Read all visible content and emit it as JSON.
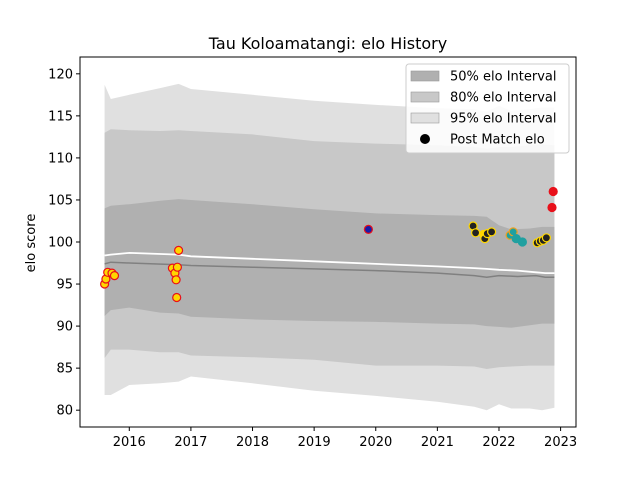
{
  "chart_data": {
    "type": "scatter",
    "title": "Tau Koloamatangi: elo History",
    "xlabel": "",
    "ylabel": "elo score",
    "xlim": [
      2015.2,
      2023.25
    ],
    "ylim": [
      78,
      122
    ],
    "x_ticks": [
      2016,
      2017,
      2018,
      2019,
      2020,
      2021,
      2022,
      2023
    ],
    "y_ticks": [
      80,
      85,
      90,
      95,
      100,
      105,
      110,
      115,
      120
    ],
    "grid": false,
    "legend_position": "top-right",
    "legend": [
      {
        "label": "50% elo Interval",
        "kind": "band",
        "color": "#b0b0b0"
      },
      {
        "label": "80% elo Interval",
        "kind": "band",
        "color": "#c8c8c8"
      },
      {
        "label": "95% elo Interval",
        "kind": "band",
        "color": "#e0e0e0"
      },
      {
        "label": "Post Match elo",
        "kind": "marker",
        "color": "#000000"
      }
    ],
    "bands": {
      "x": [
        2015.6,
        2015.7,
        2016.0,
        2016.5,
        2016.8,
        2017.0,
        2018.0,
        2019.0,
        2020.0,
        2021.0,
        2021.6,
        2021.8,
        2022.0,
        2022.2,
        2022.5,
        2022.7,
        2022.9
      ],
      "p95_upper": [
        118.7,
        117.0,
        117.5,
        118.3,
        118.8,
        118.2,
        117.5,
        116.8,
        116.3,
        115.9,
        115.8,
        115.5,
        116.2,
        115.6,
        115.8,
        116.0,
        116.0
      ],
      "p95_lower": [
        81.8,
        81.8,
        83.0,
        83.2,
        83.4,
        84.0,
        83.2,
        82.3,
        81.7,
        81.0,
        80.4,
        80.0,
        80.7,
        80.2,
        80.2,
        80.0,
        80.3
      ],
      "p80_upper": [
        113.0,
        113.4,
        113.3,
        113.2,
        113.3,
        113.2,
        112.8,
        112.0,
        111.7,
        111.5,
        111.3,
        111.1,
        111.3,
        111.3,
        111.5,
        111.6,
        111.5
      ],
      "p80_lower": [
        86.2,
        87.2,
        87.2,
        86.9,
        86.9,
        86.5,
        86.3,
        86.0,
        85.3,
        85.3,
        85.2,
        84.9,
        85.1,
        85.2,
        85.3,
        85.3,
        85.3
      ],
      "p50_upper": [
        104.0,
        104.3,
        104.5,
        104.9,
        105.1,
        105.0,
        104.5,
        103.9,
        103.4,
        103.2,
        103.1,
        103.0,
        102.0,
        101.5,
        101.6,
        101.8,
        101.8
      ],
      "p50_lower": [
        91.2,
        91.9,
        92.2,
        91.6,
        91.5,
        91.1,
        90.8,
        90.6,
        90.5,
        90.3,
        90.2,
        90.0,
        89.9,
        89.8,
        90.1,
        90.3,
        90.3
      ]
    },
    "mean_line": {
      "x": [
        2015.6,
        2015.7,
        2016.0,
        2016.8,
        2017.0,
        2018.0,
        2019.0,
        2020.0,
        2021.0,
        2021.6,
        2021.8,
        2022.0,
        2022.3,
        2022.6,
        2022.75,
        2022.9
      ],
      "y": [
        97.4,
        97.6,
        97.5,
        97.3,
        97.2,
        97.0,
        96.8,
        96.6,
        96.3,
        96.0,
        95.8,
        96.0,
        95.9,
        96.0,
        95.8,
        95.8
      ],
      "color": "#808080"
    },
    "upper_line": {
      "x": [
        2015.6,
        2015.7,
        2016.0,
        2016.8,
        2017.0,
        2018.0,
        2019.0,
        2020.0,
        2021.0,
        2021.6,
        2021.8,
        2022.0,
        2022.3,
        2022.6,
        2022.75,
        2022.9
      ],
      "y": [
        98.4,
        98.5,
        98.7,
        98.5,
        98.3,
        98.0,
        97.7,
        97.4,
        97.1,
        96.9,
        96.8,
        96.7,
        96.6,
        96.4,
        96.3,
        96.3
      ],
      "color": "#ffffff"
    },
    "points": [
      {
        "x": 2015.6,
        "y": 95.0,
        "fill": "#ffd700",
        "edge": "#e8101a"
      },
      {
        "x": 2015.62,
        "y": 95.6,
        "fill": "#ffd700",
        "edge": "#e8101a"
      },
      {
        "x": 2015.65,
        "y": 96.4,
        "fill": "#ffd700",
        "edge": "#e8101a"
      },
      {
        "x": 2015.72,
        "y": 96.3,
        "fill": "#ffd700",
        "edge": "#e8101a"
      },
      {
        "x": 2015.76,
        "y": 96.0,
        "fill": "#ffd700",
        "edge": "#e8101a"
      },
      {
        "x": 2016.7,
        "y": 96.9,
        "fill": "#ffd700",
        "edge": "#e8101a"
      },
      {
        "x": 2016.74,
        "y": 96.3,
        "fill": "#ffd700",
        "edge": "#e8101a"
      },
      {
        "x": 2016.76,
        "y": 95.5,
        "fill": "#ffd700",
        "edge": "#e8101a"
      },
      {
        "x": 2016.77,
        "y": 93.4,
        "fill": "#ffd700",
        "edge": "#e8101a"
      },
      {
        "x": 2016.78,
        "y": 97.0,
        "fill": "#ffd700",
        "edge": "#e8101a"
      },
      {
        "x": 2016.8,
        "y": 99.0,
        "fill": "#ffd700",
        "edge": "#e8101a"
      },
      {
        "x": 2019.88,
        "y": 101.5,
        "fill": "#1a1aa6",
        "edge": "#e8101a"
      },
      {
        "x": 2021.58,
        "y": 101.9,
        "fill": "#222222",
        "edge": "#ffd700"
      },
      {
        "x": 2021.62,
        "y": 101.1,
        "fill": "#222222",
        "edge": "#ffd700"
      },
      {
        "x": 2021.75,
        "y": 100.9,
        "fill": "#ffd700",
        "edge": "#ffd700"
      },
      {
        "x": 2021.77,
        "y": 100.4,
        "fill": "#222222",
        "edge": "#ffd700"
      },
      {
        "x": 2021.81,
        "y": 101.0,
        "fill": "#222222",
        "edge": "#ffd700"
      },
      {
        "x": 2021.88,
        "y": 101.2,
        "fill": "#222222",
        "edge": "#ffd700"
      },
      {
        "x": 2022.18,
        "y": 100.8,
        "fill": "#20a0a0",
        "edge": "#f0a020"
      },
      {
        "x": 2022.23,
        "y": 101.2,
        "fill": "#20a0a0",
        "edge": "#f0a020"
      },
      {
        "x": 2022.28,
        "y": 100.4,
        "fill": "#20a0a0",
        "edge": "#20a0a0"
      },
      {
        "x": 2022.38,
        "y": 100.0,
        "fill": "#20a0a0",
        "edge": "#20a0a0"
      },
      {
        "x": 2022.62,
        "y": 99.9,
        "fill": "#222222",
        "edge": "#ffd700"
      },
      {
        "x": 2022.67,
        "y": 100.1,
        "fill": "#222222",
        "edge": "#ffd700"
      },
      {
        "x": 2022.72,
        "y": 100.2,
        "fill": "#222222",
        "edge": "#ffd700"
      },
      {
        "x": 2022.77,
        "y": 100.5,
        "fill": "#222222",
        "edge": "#ffd700"
      },
      {
        "x": 2022.86,
        "y": 104.1,
        "fill": "#e8101a",
        "edge": "#e8101a"
      },
      {
        "x": 2022.88,
        "y": 106.0,
        "fill": "#e8101a",
        "edge": "#e8101a"
      }
    ]
  }
}
